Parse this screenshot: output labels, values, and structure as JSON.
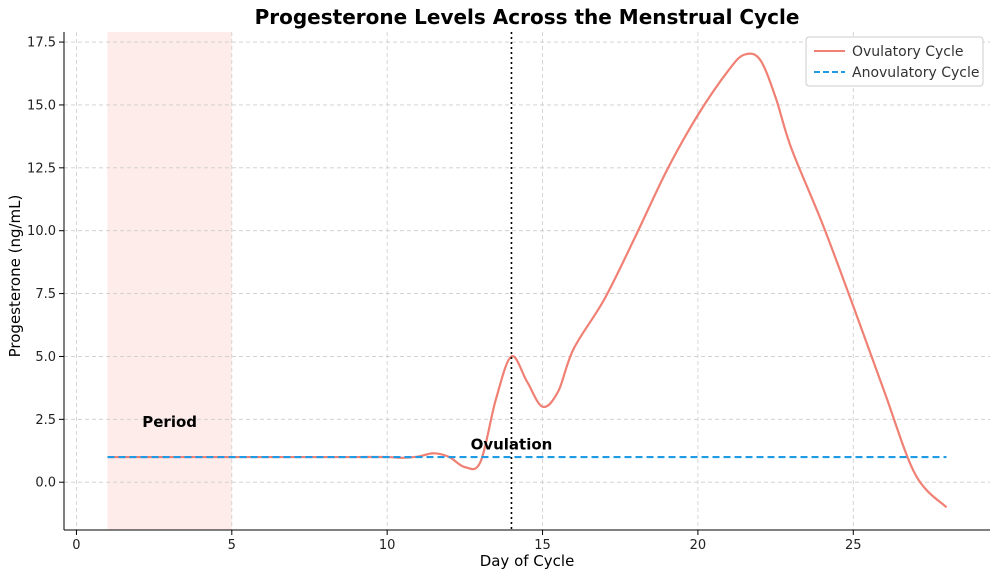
{
  "chart_data": {
    "type": "line",
    "title": "Progesterone Levels Across the Menstrual Cycle",
    "xlabel": "Day of Cycle",
    "ylabel": "Progesterone (ng/mL)",
    "xlim": [
      -0.4,
      29.4
    ],
    "ylim": [
      -1.9,
      17.9
    ],
    "xticks": [
      0,
      5,
      10,
      15,
      20,
      25
    ],
    "yticks": [
      0.0,
      2.5,
      5.0,
      7.5,
      10.0,
      12.5,
      15.0,
      17.5
    ],
    "xtick_labels": [
      "0",
      "5",
      "10",
      "15",
      "20",
      "25"
    ],
    "ytick_labels": [
      "0.0",
      "2.5",
      "5.0",
      "7.5",
      "10.0",
      "12.5",
      "15.0",
      "17.5"
    ],
    "grid": true,
    "legend_position": "top-right",
    "series": [
      {
        "name": "Ovulatory Cycle",
        "style": "solid",
        "color": "#f08074",
        "x": [
          1,
          2,
          3,
          4,
          5,
          6,
          7,
          8,
          9,
          10,
          10.5,
          11,
          11.5,
          12,
          12.5,
          13,
          13.5,
          14,
          14.5,
          15,
          15.5,
          16,
          17,
          18,
          19,
          20,
          21,
          21.5,
          22,
          22.5,
          23,
          24,
          25,
          26,
          27,
          28
        ],
        "y": [
          1.0,
          1.0,
          1.0,
          1.0,
          1.0,
          1.0,
          1.0,
          1.0,
          1.0,
          1.0,
          0.97,
          1.02,
          1.15,
          1.0,
          0.6,
          0.8,
          3.3,
          5.0,
          4.0,
          3.0,
          3.6,
          5.3,
          7.3,
          9.8,
          12.4,
          14.6,
          16.4,
          17.0,
          16.8,
          15.3,
          13.3,
          10.3,
          7.0,
          3.6,
          0.3,
          -1.0
        ]
      },
      {
        "name": "Anovulatory Cycle",
        "style": "dashed",
        "color": "#1f9be6",
        "x": [
          1,
          28
        ],
        "y": [
          1.0,
          1.0
        ]
      }
    ],
    "shaded_regions": [
      {
        "x_start": 1,
        "x_end": 5,
        "color": "#fde4e1",
        "label": "Period"
      }
    ],
    "vertical_lines": [
      {
        "x": 14,
        "style": "dotted",
        "color": "#000000",
        "label": "Ovulation"
      }
    ],
    "annotations": [
      {
        "text": "Period",
        "x": 3,
        "y": 2.2
      },
      {
        "text": "Ovulation",
        "x": 14,
        "y": 1.3
      }
    ]
  }
}
